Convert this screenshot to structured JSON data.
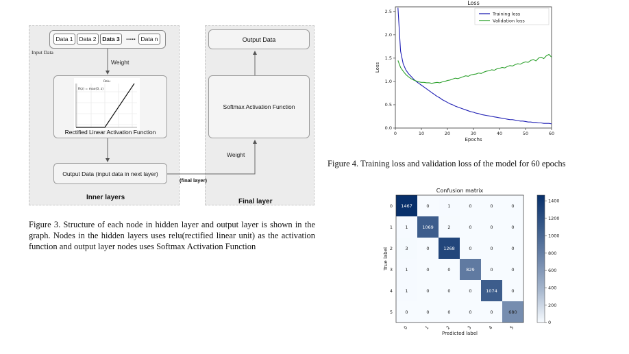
{
  "diagram": {
    "inputs": [
      "Data 1",
      "Data 2",
      "Data 3",
      ".....",
      "Data n"
    ],
    "input_label": "Input Data",
    "weight_top": "Weight",
    "relu_label": "Rectified Linear Activation Function",
    "relu_mini": {
      "title": "Relu",
      "formula": "R(z) = max(0, z)"
    },
    "output_inner": "Output Data (input data in next layer)",
    "inner_title": "Inner layers",
    "final_link": "(final layer)",
    "weight_right": "Weight",
    "softmax_label": "Softmax Activation Function",
    "output_final": "Output Data",
    "final_title": "Final layer"
  },
  "fig3_caption": "Figure 3.    Structure of each node in hidden layer and output layer is shown in the graph. Nodes in the hidden layers uses relu(rectified linear unit) as the activation function and output layer nodes uses Softmax Activation Function",
  "fig4_caption": "Figure 4.    Training loss and validation loss of the model for 60 epochs",
  "colors": {
    "train": "#1f1fb4",
    "valid": "#2ca02c",
    "cm_dark": "#08306b",
    "cm_light": "#f7fbff"
  },
  "chart_data": [
    {
      "type": "line",
      "title": "Loss",
      "xlabel": "Epochs",
      "ylabel": "Loss",
      "xlim": [
        0,
        60
      ],
      "ylim": [
        0,
        2.6
      ],
      "xticks": [
        0,
        10,
        20,
        30,
        40,
        50,
        60
      ],
      "yticks": [
        0.0,
        0.5,
        1.0,
        1.5,
        2.0,
        2.5
      ],
      "legend": "top-right",
      "x": [
        1,
        2,
        3,
        4,
        5,
        6,
        7,
        8,
        9,
        10,
        11,
        12,
        13,
        14,
        15,
        16,
        17,
        18,
        19,
        20,
        21,
        22,
        23,
        24,
        25,
        26,
        27,
        28,
        29,
        30,
        31,
        32,
        33,
        34,
        35,
        36,
        37,
        38,
        39,
        40,
        41,
        42,
        43,
        44,
        45,
        46,
        47,
        48,
        49,
        50,
        51,
        52,
        53,
        54,
        55,
        56,
        57,
        58,
        59,
        60
      ],
      "series": [
        {
          "name": "Training loss",
          "color": "#1f1fb4",
          "values": [
            2.58,
            1.65,
            1.38,
            1.25,
            1.17,
            1.11,
            1.05,
            1.0,
            0.96,
            0.92,
            0.88,
            0.84,
            0.8,
            0.76,
            0.72,
            0.68,
            0.65,
            0.61,
            0.58,
            0.55,
            0.52,
            0.5,
            0.47,
            0.45,
            0.43,
            0.41,
            0.39,
            0.37,
            0.35,
            0.34,
            0.32,
            0.31,
            0.29,
            0.28,
            0.27,
            0.26,
            0.25,
            0.24,
            0.23,
            0.22,
            0.21,
            0.2,
            0.19,
            0.18,
            0.18,
            0.17,
            0.16,
            0.15,
            0.15,
            0.14,
            0.13,
            0.13,
            0.12,
            0.12,
            0.11,
            0.11,
            0.1,
            0.1,
            0.1,
            0.09
          ]
        },
        {
          "name": "Validation loss",
          "color": "#2ca02c",
          "values": [
            1.45,
            1.3,
            1.22,
            1.15,
            1.1,
            1.06,
            1.03,
            1.01,
            0.99,
            0.98,
            0.98,
            0.97,
            0.97,
            0.96,
            0.97,
            0.98,
            0.97,
            0.99,
            1.0,
            1.02,
            1.03,
            1.05,
            1.07,
            1.06,
            1.08,
            1.1,
            1.12,
            1.11,
            1.14,
            1.15,
            1.16,
            1.18,
            1.17,
            1.2,
            1.22,
            1.23,
            1.25,
            1.24,
            1.27,
            1.28,
            1.3,
            1.29,
            1.32,
            1.34,
            1.33,
            1.36,
            1.38,
            1.37,
            1.4,
            1.42,
            1.41,
            1.45,
            1.47,
            1.44,
            1.5,
            1.52,
            1.49,
            1.55,
            1.58,
            1.52
          ]
        }
      ]
    },
    {
      "type": "heatmap",
      "title": "Confusion matrix",
      "xlabel": "Predicted label",
      "ylabel": "True label",
      "labels": [
        "0",
        "1",
        "2",
        "3",
        "4",
        "5"
      ],
      "matrix": [
        [
          1467,
          0,
          1,
          0,
          0,
          0
        ],
        [
          1,
          1069,
          2,
          0,
          0,
          0
        ],
        [
          3,
          0,
          1268,
          0,
          0,
          0
        ],
        [
          1,
          0,
          0,
          829,
          0,
          0
        ],
        [
          1,
          0,
          0,
          0,
          1074,
          0
        ],
        [
          0,
          0,
          0,
          0,
          0,
          680
        ]
      ],
      "colorbar_ticks": [
        0,
        200,
        400,
        600,
        800,
        1000,
        1200,
        1400
      ],
      "vmax": 1467
    }
  ]
}
